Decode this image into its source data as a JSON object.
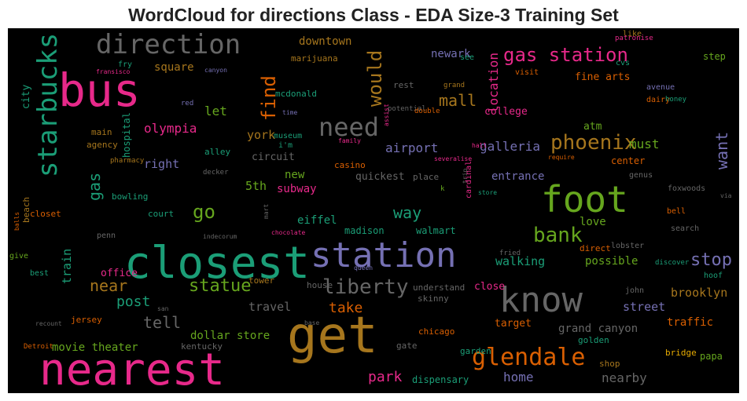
{
  "chart_data": {
    "type": "wordcloud",
    "title": "WordCloud for directions Class - EDA Size-3 Training Set",
    "background": "#000000",
    "words": [
      {
        "text": "closest",
        "size": 56,
        "color": "#1b9e77",
        "rotate": false
      },
      {
        "text": "nearest",
        "size": 56,
        "color": "#e7298a",
        "rotate": false
      },
      {
        "text": "get",
        "size": 64,
        "color": "#a6761d",
        "rotate": false
      },
      {
        "text": "bus",
        "size": 58,
        "color": "#e7298a",
        "rotate": false
      },
      {
        "text": "station",
        "size": 44,
        "color": "#7570b3",
        "rotate": false
      },
      {
        "text": "know",
        "size": 44,
        "color": "#666666",
        "rotate": false
      },
      {
        "text": "foot",
        "size": 46,
        "color": "#66a61e",
        "rotate": false
      },
      {
        "text": "direction",
        "size": 34,
        "color": "#666666",
        "rotate": false
      },
      {
        "text": "starbucks",
        "size": 34,
        "color": "#1b9e77",
        "rotate": true
      },
      {
        "text": "need",
        "size": 32,
        "color": "#666666",
        "rotate": false
      },
      {
        "text": "glendale",
        "size": 30,
        "color": "#d95f02",
        "rotate": false
      },
      {
        "text": "gas station",
        "size": 24,
        "color": "#e7298a",
        "rotate": false
      },
      {
        "text": "phoenix",
        "size": 26,
        "color": "#a6761d",
        "rotate": false
      },
      {
        "text": "liberty",
        "size": 26,
        "color": "#666666",
        "rotate": false
      },
      {
        "text": "bank",
        "size": 26,
        "color": "#66a61e",
        "rotate": false
      },
      {
        "text": "would",
        "size": 24,
        "color": "#a6761d",
        "rotate": true
      },
      {
        "text": "find",
        "size": 24,
        "color": "#d95f02",
        "rotate": true
      },
      {
        "text": "go",
        "size": 24,
        "color": "#66a61e",
        "rotate": false
      },
      {
        "text": "statue",
        "size": 22,
        "color": "#66a61e",
        "rotate": false
      },
      {
        "text": "stop",
        "size": 22,
        "color": "#7570b3",
        "rotate": false
      },
      {
        "text": "way",
        "size": 20,
        "color": "#1b9e77",
        "rotate": false
      },
      {
        "text": "want",
        "size": 20,
        "color": "#7570b3",
        "rotate": true
      },
      {
        "text": "near",
        "size": 20,
        "color": "#a6761d",
        "rotate": false
      },
      {
        "text": "mall",
        "size": 20,
        "color": "#a6761d",
        "rotate": false
      },
      {
        "text": "tell",
        "size": 20,
        "color": "#666666",
        "rotate": false
      },
      {
        "text": "gas",
        "size": 20,
        "color": "#1b9e77",
        "rotate": true
      },
      {
        "text": "take",
        "size": 18,
        "color": "#d95f02",
        "rotate": false
      },
      {
        "text": "park",
        "size": 18,
        "color": "#e7298a",
        "rotate": false
      },
      {
        "text": "location",
        "size": 16,
        "color": "#e7298a",
        "rotate": true
      },
      {
        "text": "olympia",
        "size": 16,
        "color": "#e7298a",
        "rotate": false
      },
      {
        "text": "post",
        "size": 18,
        "color": "#1b9e77",
        "rotate": false
      },
      {
        "text": "airport",
        "size": 16,
        "color": "#7570b3",
        "rotate": false
      },
      {
        "text": "galleria",
        "size": 16,
        "color": "#7570b3",
        "rotate": false
      },
      {
        "text": "must",
        "size": 16,
        "color": "#66a61e",
        "rotate": false
      },
      {
        "text": "home",
        "size": 16,
        "color": "#7570b3",
        "rotate": false
      },
      {
        "text": "nearby",
        "size": 16,
        "color": "#666666",
        "rotate": false
      },
      {
        "text": "street",
        "size": 15,
        "color": "#7570b3",
        "rotate": false
      },
      {
        "text": "brooklyn",
        "size": 15,
        "color": "#a6761d",
        "rotate": false
      },
      {
        "text": "walking",
        "size": 15,
        "color": "#1b9e77",
        "rotate": false
      },
      {
        "text": "travel",
        "size": 15,
        "color": "#666666",
        "rotate": false
      },
      {
        "text": "train",
        "size": 15,
        "color": "#1b9e77",
        "rotate": true
      },
      {
        "text": "subway",
        "size": 14,
        "color": "#e7298a",
        "rotate": false
      },
      {
        "text": "let",
        "size": 16,
        "color": "#66a61e",
        "rotate": false
      },
      {
        "text": "right",
        "size": 15,
        "color": "#7570b3",
        "rotate": false
      },
      {
        "text": "york",
        "size": 15,
        "color": "#a6761d",
        "rotate": false
      },
      {
        "text": "5th",
        "size": 15,
        "color": "#66a61e",
        "rotate": false
      },
      {
        "text": "new",
        "size": 14,
        "color": "#66a61e",
        "rotate": false
      },
      {
        "text": "eiffel",
        "size": 14,
        "color": "#1b9e77",
        "rotate": false
      },
      {
        "text": "square",
        "size": 14,
        "color": "#a6761d",
        "rotate": false
      },
      {
        "text": "downtown",
        "size": 14,
        "color": "#a6761d",
        "rotate": false
      },
      {
        "text": "newark",
        "size": 14,
        "color": "#7570b3",
        "rotate": false
      },
      {
        "text": "fine arts",
        "size": 13,
        "color": "#d95f02",
        "rotate": false
      },
      {
        "text": "college",
        "size": 13,
        "color": "#e7298a",
        "rotate": false
      },
      {
        "text": "atm",
        "size": 13,
        "color": "#66a61e",
        "rotate": false
      },
      {
        "text": "entrance",
        "size": 14,
        "color": "#7570b3",
        "rotate": false
      },
      {
        "text": "love",
        "size": 14,
        "color": "#66a61e",
        "rotate": false
      },
      {
        "text": "possible",
        "size": 14,
        "color": "#66a61e",
        "rotate": false
      },
      {
        "text": "movie theater",
        "size": 14,
        "color": "#66a61e",
        "rotate": false
      },
      {
        "text": "dollar store",
        "size": 14,
        "color": "#66a61e",
        "rotate": false
      },
      {
        "text": "grand canyon",
        "size": 14,
        "color": "#666666",
        "rotate": false
      },
      {
        "text": "traffic",
        "size": 14,
        "color": "#d95f02",
        "rotate": false
      },
      {
        "text": "quickest",
        "size": 13,
        "color": "#666666",
        "rotate": false
      },
      {
        "text": "circuit",
        "size": 13,
        "color": "#666666",
        "rotate": false
      },
      {
        "text": "office",
        "size": 13,
        "color": "#e7298a",
        "rotate": false
      },
      {
        "text": "close",
        "size": 13,
        "color": "#e7298a",
        "rotate": false
      },
      {
        "text": "target",
        "size": 13,
        "color": "#d95f02",
        "rotate": false
      },
      {
        "text": "city",
        "size": 13,
        "color": "#1b9e77",
        "rotate": true
      },
      {
        "text": "step",
        "size": 12,
        "color": "#66a61e",
        "rotate": false
      },
      {
        "text": "center",
        "size": 12,
        "color": "#d95f02",
        "rotate": false
      },
      {
        "text": "hospital",
        "size": 12,
        "color": "#1b9e77",
        "rotate": true
      },
      {
        "text": "walmart",
        "size": 12,
        "color": "#1b9e77",
        "rotate": false
      },
      {
        "text": "madison",
        "size": 12,
        "color": "#1b9e77",
        "rotate": false
      },
      {
        "text": "bowling",
        "size": 11,
        "color": "#1b9e77",
        "rotate": false
      },
      {
        "text": "marijuana",
        "size": 11,
        "color": "#a6761d",
        "rotate": false
      },
      {
        "text": "mcdonald",
        "size": 11,
        "color": "#1b9e77",
        "rotate": false
      },
      {
        "text": "main",
        "size": 11,
        "color": "#a6761d",
        "rotate": false
      },
      {
        "text": "agency",
        "size": 11,
        "color": "#a6761d",
        "rotate": false
      },
      {
        "text": "alley",
        "size": 11,
        "color": "#1b9e77",
        "rotate": false
      },
      {
        "text": "casino",
        "size": 11,
        "color": "#d95f02",
        "rotate": false
      },
      {
        "text": "place",
        "size": 11,
        "color": "#666666",
        "rotate": false
      },
      {
        "text": "court",
        "size": 11,
        "color": "#1b9e77",
        "rotate": false
      },
      {
        "text": "closet",
        "size": 11,
        "color": "#d95f02",
        "rotate": false
      },
      {
        "text": "beach",
        "size": 11,
        "color": "#a6761d",
        "rotate": true
      },
      {
        "text": "give",
        "size": 10,
        "color": "#66a61e",
        "rotate": false
      },
      {
        "text": "best",
        "size": 10,
        "color": "#1b9e77",
        "rotate": false
      },
      {
        "text": "jersey",
        "size": 11,
        "color": "#d95f02",
        "rotate": false
      },
      {
        "text": "kentucky",
        "size": 11,
        "color": "#666666",
        "rotate": false
      },
      {
        "text": "chicago",
        "size": 11,
        "color": "#d95f02",
        "rotate": false
      },
      {
        "text": "gate",
        "size": 11,
        "color": "#666666",
        "rotate": false
      },
      {
        "text": "garden",
        "size": 11,
        "color": "#1b9e77",
        "rotate": false
      },
      {
        "text": "golden",
        "size": 11,
        "color": "#1b9e77",
        "rotate": false
      },
      {
        "text": "dispensary",
        "size": 12,
        "color": "#1b9e77",
        "rotate": false
      },
      {
        "text": "shop",
        "size": 11,
        "color": "#a6761d",
        "rotate": false
      },
      {
        "text": "bridge",
        "size": 11,
        "color": "#e6ab02",
        "rotate": false
      },
      {
        "text": "papa",
        "size": 12,
        "color": "#66a61e",
        "rotate": false
      },
      {
        "text": "skinny",
        "size": 11,
        "color": "#666666",
        "rotate": false
      },
      {
        "text": "understand",
        "size": 11,
        "color": "#666666",
        "rotate": false
      },
      {
        "text": "house",
        "size": 11,
        "color": "#666666",
        "rotate": false
      },
      {
        "text": "tower",
        "size": 11,
        "color": "#a6761d",
        "rotate": false
      },
      {
        "text": "john",
        "size": 10,
        "color": "#666666",
        "rotate": false
      },
      {
        "text": "hoof",
        "size": 10,
        "color": "#1b9e77",
        "rotate": false
      },
      {
        "text": "direct",
        "size": 11,
        "color": "#d95f02",
        "rotate": false
      },
      {
        "text": "lobster",
        "size": 10,
        "color": "#666666",
        "rotate": false
      },
      {
        "text": "search",
        "size": 10,
        "color": "#666666",
        "rotate": false
      },
      {
        "text": "bell",
        "size": 10,
        "color": "#d95f02",
        "rotate": false
      },
      {
        "text": "foxwoods",
        "size": 10,
        "color": "#666666",
        "rotate": false
      },
      {
        "text": "genus",
        "size": 10,
        "color": "#666666",
        "rotate": false
      },
      {
        "text": "discover",
        "size": 9,
        "color": "#1b9e77",
        "rotate": false
      },
      {
        "text": "via",
        "size": 8,
        "color": "#666666",
        "rotate": false
      },
      {
        "text": "avenue",
        "size": 10,
        "color": "#7570b3",
        "rotate": false
      },
      {
        "text": "dairy",
        "size": 10,
        "color": "#d95f02",
        "rotate": false
      },
      {
        "text": "honey",
        "size": 9,
        "color": "#1b9e77",
        "rotate": false
      },
      {
        "text": "visit",
        "size": 10,
        "color": "#d95f02",
        "rotate": false
      },
      {
        "text": "cvs",
        "size": 10,
        "color": "#1b9e77",
        "rotate": false
      },
      {
        "text": "like",
        "size": 10,
        "color": "#a6761d",
        "rotate": false
      },
      {
        "text": "patronise",
        "size": 9,
        "color": "#e7298a",
        "rotate": false
      },
      {
        "text": "see",
        "size": 10,
        "color": "#1b9e77",
        "rotate": false
      },
      {
        "text": "grand",
        "size": 9,
        "color": "#a6761d",
        "rotate": false
      },
      {
        "text": "rest",
        "size": 11,
        "color": "#666666",
        "rotate": false
      },
      {
        "text": "potential",
        "size": 9,
        "color": "#666666",
        "rotate": false
      },
      {
        "text": "double",
        "size": 9,
        "color": "#d95f02",
        "rotate": false
      },
      {
        "text": "assist",
        "size": 8,
        "color": "#e7298a",
        "rotate": true
      },
      {
        "text": "hall",
        "size": 8,
        "color": "#e7298a",
        "rotate": false
      },
      {
        "text": "require",
        "size": 8,
        "color": "#d95f02",
        "rotate": false
      },
      {
        "text": "severalise",
        "size": 8,
        "color": "#e7298a",
        "rotate": false
      },
      {
        "text": "trip",
        "size": 8,
        "color": "#666666",
        "rotate": true
      },
      {
        "text": "k",
        "size": 9,
        "color": "#66a61e",
        "rotate": false
      },
      {
        "text": "cardinal",
        "size": 10,
        "color": "#e7298a",
        "rotate": true
      },
      {
        "text": "store",
        "size": 8,
        "color": "#1b9e77",
        "rotate": false
      },
      {
        "text": "fried",
        "size": 9,
        "color": "#666666",
        "rotate": false
      },
      {
        "text": "time",
        "size": 8,
        "color": "#7570b3",
        "rotate": false
      },
      {
        "text": "museum",
        "size": 10,
        "color": "#1b9e77",
        "rotate": false
      },
      {
        "text": "i'm",
        "size": 10,
        "color": "#1b9e77",
        "rotate": false
      },
      {
        "text": "family",
        "size": 8,
        "color": "#e7298a",
        "rotate": false
      },
      {
        "text": "mart",
        "size": 8,
        "color": "#666666",
        "rotate": true
      },
      {
        "text": "chocolate",
        "size": 8,
        "color": "#e7298a",
        "rotate": false
      },
      {
        "text": "indecorum",
        "size": 8,
        "color": "#666666",
        "rotate": false
      },
      {
        "text": "penn",
        "size": 10,
        "color": "#666666",
        "rotate": false
      },
      {
        "text": "balls",
        "size": 8,
        "color": "#d95f02",
        "rotate": true
      },
      {
        "text": "decker",
        "size": 9,
        "color": "#666666",
        "rotate": false
      },
      {
        "text": "pharmacy",
        "size": 9,
        "color": "#a6761d",
        "rotate": false
      },
      {
        "text": "red",
        "size": 9,
        "color": "#7570b3",
        "rotate": false
      },
      {
        "text": "fry",
        "size": 10,
        "color": "#1b9e77",
        "rotate": false
      },
      {
        "text": "fransisco",
        "size": 8,
        "color": "#e7298a",
        "rotate": false
      },
      {
        "text": "canyon",
        "size": 8,
        "color": "#7570b3",
        "rotate": false
      },
      {
        "text": "san",
        "size": 8,
        "color": "#666666",
        "rotate": false
      },
      {
        "text": "recount",
        "size": 8,
        "color": "#666666",
        "rotate": false
      },
      {
        "text": "Detroit",
        "size": 9,
        "color": "#d95f02",
        "rotate": false
      },
      {
        "text": "queen",
        "size": 8,
        "color": "#7570b3",
        "rotate": false
      },
      {
        "text": "base",
        "size": 8,
        "color": "#666666",
        "rotate": false
      }
    ]
  }
}
